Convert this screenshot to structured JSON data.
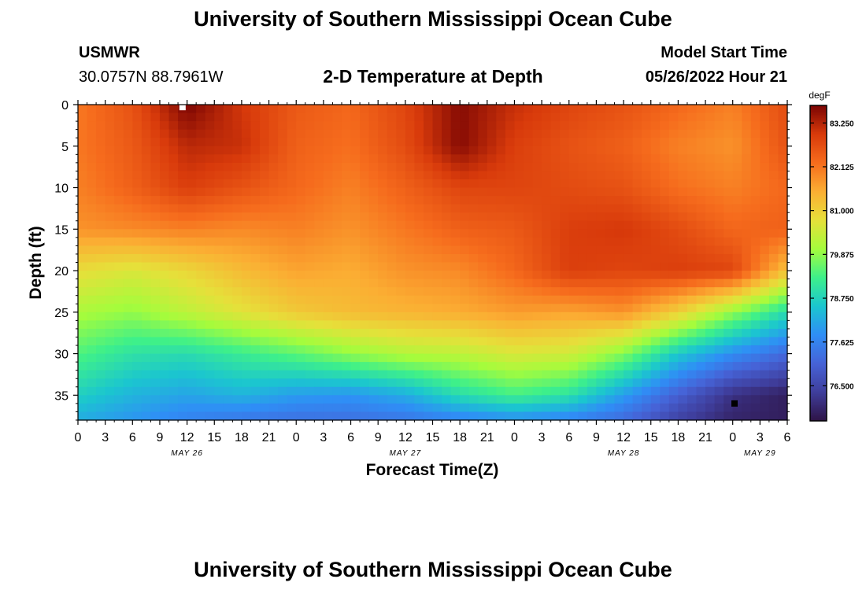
{
  "header": {
    "title": "University of Southern Mississippi Ocean Cube",
    "station_id": "USMWR",
    "station_coords": "30.0757N  88.7961W",
    "plot_title": "2-D Temperature at Depth",
    "model_label": "Model Start Time",
    "model_start": "05/26/2022 Hour 21"
  },
  "footer": {
    "title": "University of Southern Mississippi Ocean Cube"
  },
  "colors": {
    "scale": [
      "#2e1346",
      "#3f3e9c",
      "#4663d7",
      "#2f8ef6",
      "#1bc6cf",
      "#3ef08a",
      "#a5fc3c",
      "#e6e03a",
      "#fbae33",
      "#f66c1d",
      "#d83a0b",
      "#7a0403"
    ]
  },
  "chart_data": {
    "type": "heatmap",
    "xlabel": "Forecast Time(Z)",
    "ylabel": "Depth (ft)",
    "x_tick_labels": [
      "0",
      "3",
      "6",
      "9",
      "12",
      "15",
      "18",
      "21",
      "0",
      "3",
      "6",
      "9",
      "12",
      "15",
      "18",
      "21",
      "0",
      "3",
      "6",
      "9",
      "12",
      "15",
      "18",
      "21",
      "0",
      "3",
      "6"
    ],
    "x_hours": [
      0,
      3,
      6,
      9,
      12,
      15,
      18,
      21,
      24,
      27,
      30,
      33,
      36,
      39,
      42,
      45,
      48,
      51,
      54,
      57,
      60,
      63,
      66,
      69,
      72,
      75,
      78
    ],
    "x_range_hours": [
      0,
      78
    ],
    "day_labels": [
      {
        "text": "MAY 26",
        "hour": 12
      },
      {
        "text": "MAY 27",
        "hour": 36
      },
      {
        "text": "MAY 28",
        "hour": 60
      },
      {
        "text": "MAY 29",
        "hour": 75
      }
    ],
    "y_ticks": [
      0,
      5,
      10,
      15,
      20,
      25,
      30,
      35
    ],
    "y_tick_labels": [
      "0",
      "5",
      "10",
      "15",
      "20",
      "25",
      "30",
      "35"
    ],
    "y_range": [
      0,
      38
    ],
    "y_inverted": true,
    "colorbar": {
      "unit": "degF",
      "ticks": [
        "83.250",
        "82.125",
        "81.000",
        "79.875",
        "78.750",
        "77.625",
        "76.500"
      ],
      "tick_values": [
        83.25,
        82.125,
        81.0,
        79.875,
        78.75,
        77.625,
        76.5
      ],
      "range": [
        75.6,
        83.7
      ]
    },
    "depth_grid_ft": [
      0,
      5,
      10,
      15,
      20,
      25,
      30,
      35,
      38
    ],
    "time_grid_hours": [
      0,
      6,
      12,
      18,
      24,
      30,
      36,
      42,
      48,
      54,
      60,
      66,
      72,
      78
    ],
    "temperature_degF": [
      [
        82.1,
        82.6,
        83.7,
        83.0,
        82.5,
        82.3,
        82.8,
        83.6,
        83.1,
        82.8,
        82.6,
        82.3,
        82.0,
        82.7
      ],
      [
        82.1,
        82.5,
        83.2,
        83.1,
        82.4,
        82.2,
        82.7,
        83.6,
        82.9,
        82.6,
        82.4,
        82.0,
        81.8,
        82.6
      ],
      [
        82.0,
        82.4,
        82.9,
        82.6,
        82.3,
        82.0,
        82.4,
        82.8,
        82.8,
        82.7,
        82.6,
        82.2,
        82.0,
        82.3
      ],
      [
        81.8,
        81.9,
        82.0,
        81.9,
        82.0,
        81.8,
        82.1,
        82.4,
        82.5,
        82.9,
        83.0,
        82.7,
        82.3,
        82.4
      ],
      [
        80.8,
        80.6,
        80.9,
        81.3,
        81.6,
        81.5,
        81.8,
        81.9,
        82.3,
        82.9,
        82.8,
        82.9,
        82.8,
        81.2
      ],
      [
        80.1,
        79.9,
        80.3,
        80.7,
        81.1,
        81.3,
        81.4,
        81.5,
        81.7,
        81.6,
        81.8,
        81.0,
        79.9,
        78.9
      ],
      [
        79.4,
        79.0,
        78.9,
        79.2,
        79.5,
        79.9,
        80.2,
        80.3,
        80.6,
        80.5,
        79.8,
        78.6,
        77.8,
        77.2
      ],
      [
        78.7,
        78.3,
        78.1,
        78.3,
        78.0,
        77.9,
        78.2,
        78.9,
        79.3,
        79.0,
        78.0,
        77.0,
        76.1,
        75.8
      ],
      [
        78.2,
        77.9,
        77.6,
        77.4,
        77.3,
        77.3,
        77.4,
        77.6,
        77.8,
        77.6,
        77.2,
        76.4,
        75.9,
        75.8
      ]
    ],
    "markers": [
      {
        "hour": 11.5,
        "depth": 0.3,
        "color": "#ffffff"
      },
      {
        "hour": 72.2,
        "depth": 36.0,
        "color": "#000000"
      }
    ]
  }
}
